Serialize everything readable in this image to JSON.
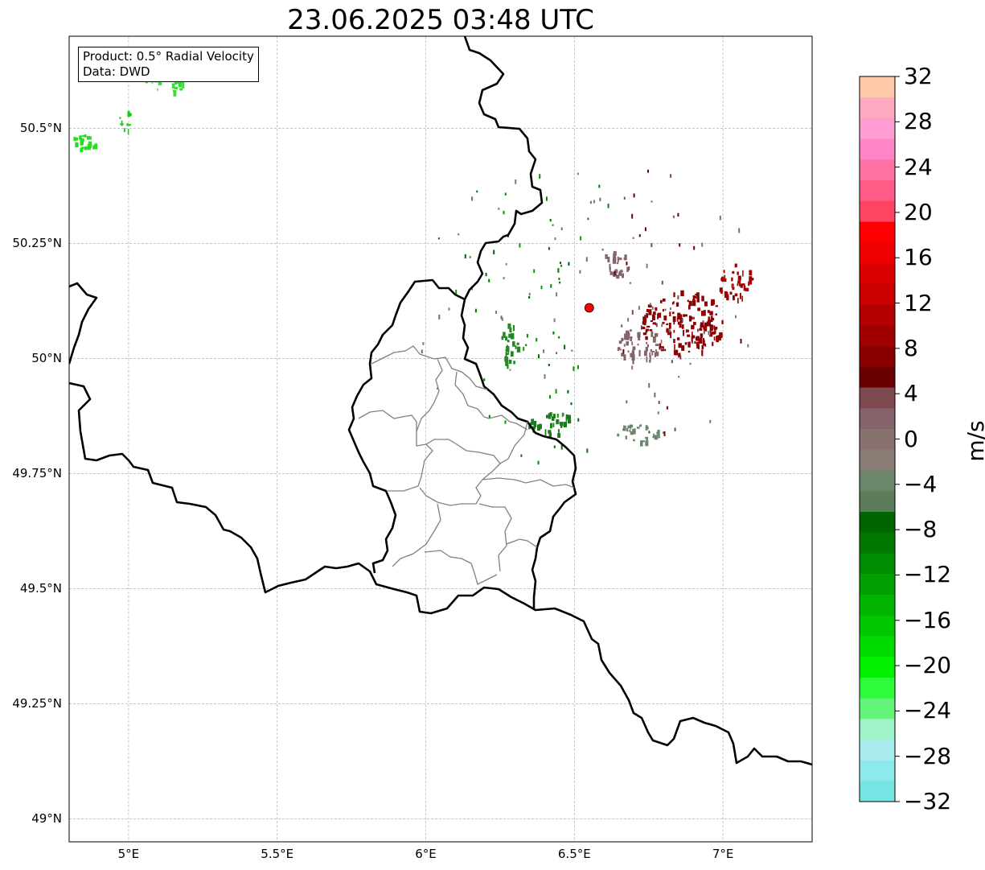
{
  "title": "23.06.2025 03:48 UTC",
  "info": {
    "product": "Product: 0.5° Radial Velocity",
    "source": "Data: DWD"
  },
  "lat_ticks": [
    {
      "value": 50.5,
      "label": "50.5°N"
    },
    {
      "value": 50.25,
      "label": "50.25°N"
    },
    {
      "value": 50.0,
      "label": "50°N"
    },
    {
      "value": 49.75,
      "label": "49.75°N"
    },
    {
      "value": 49.5,
      "label": "49.5°N"
    },
    {
      "value": 49.25,
      "label": "49.25°N"
    },
    {
      "value": 49.0,
      "label": "49°N"
    }
  ],
  "lon_ticks": [
    {
      "value": 5.0,
      "label": "5°E"
    },
    {
      "value": 5.5,
      "label": "5.5°E"
    },
    {
      "value": 6.0,
      "label": "6°E"
    },
    {
      "value": 6.5,
      "label": "6.5°E"
    },
    {
      "value": 7.0,
      "label": "7°E"
    }
  ],
  "extent": {
    "lon_min": 4.8,
    "lon_max": 7.3,
    "lat_min": 48.95,
    "lat_max": 50.7
  },
  "radar_site": {
    "lon": 6.55,
    "lat": 50.11,
    "color": "#ff0000"
  },
  "colorbar": {
    "unit": "m/s",
    "min": -32,
    "max": 32,
    "step": 4,
    "tick_labels": [
      "32",
      "28",
      "24",
      "20",
      "16",
      "12",
      "8",
      "4",
      "0",
      "−4",
      "−8",
      "−12",
      "−16",
      "−20",
      "−24",
      "−28",
      "−32"
    ],
    "colors_low_to_high": [
      "#76e4e4",
      "#8ee9ec",
      "#a9ecef",
      "#9ef4c8",
      "#64f47a",
      "#2efb3c",
      "#00f000",
      "#00dc00",
      "#00c800",
      "#00b400",
      "#00a000",
      "#008c00",
      "#007800",
      "#006400",
      "#5d7d5a",
      "#6b866a",
      "#8a7b75",
      "#887270",
      "#84636a",
      "#7e4a50",
      "#6a0000",
      "#880000",
      "#a00000",
      "#b40000",
      "#cb0000",
      "#dc0000",
      "#ef0000",
      "#ff0000",
      "#ff4463",
      "#ff5b86",
      "#ff72a4",
      "#ff84c8",
      "#ff9cd2",
      "#ffaac0",
      "#ffc9a9"
    ]
  },
  "velocity_regions": [
    {
      "name": "strong-inbound-nw",
      "color": "#22dd22",
      "lon": 4.85,
      "lat": 50.47,
      "w": 0.08,
      "h": 0.05
    },
    {
      "name": "strong-inbound-nw2",
      "color": "#11cc11",
      "lon": 4.99,
      "lat": 50.52,
      "w": 0.05,
      "h": 0.05
    },
    {
      "name": "strong-inbound-nw3",
      "color": "#33dd33",
      "lon": 5.13,
      "lat": 50.62,
      "w": 0.18,
      "h": 0.08
    },
    {
      "name": "outbound-east-core",
      "color": "#8b0000",
      "lon": 6.86,
      "lat": 50.08,
      "w": 0.28,
      "h": 0.14
    },
    {
      "name": "outbound-east-ne",
      "color": "#a10000",
      "lon": 7.04,
      "lat": 50.17,
      "w": 0.12,
      "h": 0.08
    },
    {
      "name": "near-zero-east",
      "color": "#84636a",
      "lon": 6.72,
      "lat": 50.03,
      "w": 0.16,
      "h": 0.08
    },
    {
      "name": "near-zero-north",
      "color": "#84636a",
      "lon": 6.64,
      "lat": 50.21,
      "w": 0.09,
      "h": 0.06
    },
    {
      "name": "inbound-sw",
      "color": "#1a7a1a",
      "lon": 6.42,
      "lat": 49.86,
      "w": 0.16,
      "h": 0.05
    },
    {
      "name": "inbound-west",
      "color": "#228822",
      "lon": 6.28,
      "lat": 50.03,
      "w": 0.06,
      "h": 0.1
    },
    {
      "name": "near-zero-south",
      "color": "#6b866a",
      "lon": 6.72,
      "lat": 49.84,
      "w": 0.16,
      "h": 0.04
    }
  ]
}
